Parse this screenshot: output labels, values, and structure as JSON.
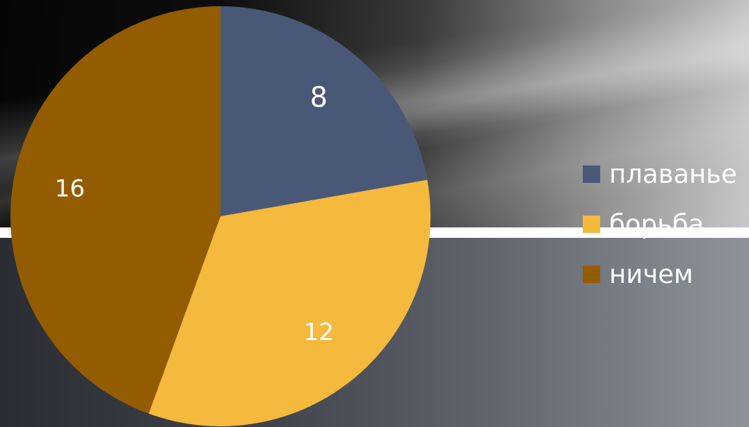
{
  "chart_data": {
    "type": "pie",
    "categories": [
      "плаванье",
      "борьба",
      "ничем"
    ],
    "values": [
      8,
      12,
      16
    ],
    "data_labels": [
      "8",
      "12",
      "16"
    ],
    "colors": [
      "#4a5878",
      "#f5b93d",
      "#935c00"
    ],
    "legend_position": "right",
    "title": ""
  },
  "legend": {
    "items": [
      {
        "label": "плаванье",
        "color": "#4a5878"
      },
      {
        "label": "борьба",
        "color": "#f5b93d"
      },
      {
        "label": "ничем",
        "color": "#935c00"
      }
    ]
  }
}
